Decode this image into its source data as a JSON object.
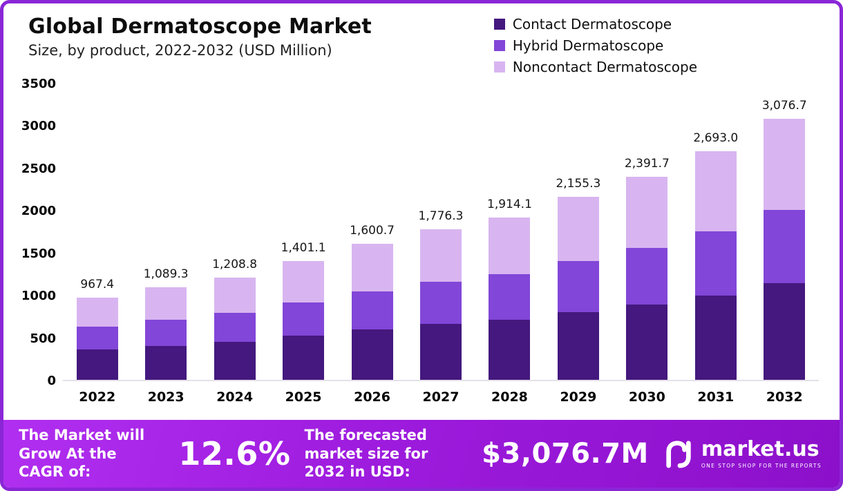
{
  "header": {
    "title": "Global Dermatoscope Market",
    "subtitle": "Size, by product, 2022-2032 (USD Million)"
  },
  "legend": {
    "items": [
      {
        "label": "Contact Dermatoscope",
        "color": "#44187e"
      },
      {
        "label": "Hybrid Dermatoscope",
        "color": "#8246d8"
      },
      {
        "label": "Noncontact Dermatoscope",
        "color": "#d8b5f0"
      }
    ]
  },
  "chart_data": {
    "type": "bar",
    "stacked": true,
    "title": "Global Dermatoscope Market",
    "subtitle": "Size, by product, 2022-2032 (USD Million)",
    "units": "USD Million",
    "categories": [
      "2022",
      "2023",
      "2024",
      "2025",
      "2026",
      "2027",
      "2028",
      "2029",
      "2030",
      "2031",
      "2032"
    ],
    "series": [
      {
        "key": "contact",
        "name": "Contact Dermatoscope",
        "color": "#44187e",
        "values": [
          357.9,
          403.0,
          447.3,
          518.4,
          592.3,
          657.2,
          708.2,
          797.5,
          884.9,
          996.4,
          1138.4
        ]
      },
      {
        "key": "hybrid",
        "name": "Hybrid Dermatoscope",
        "color": "#8246d8",
        "values": [
          270.9,
          305.0,
          338.5,
          392.3,
          448.2,
          497.4,
          535.9,
          603.5,
          669.7,
          754.0,
          861.5
        ]
      },
      {
        "key": "noncontact",
        "name": "Noncontact Dermatoscope",
        "color": "#d8b5f0",
        "values": [
          338.6,
          381.3,
          423.0,
          490.4,
          560.2,
          621.7,
          670.0,
          754.3,
          837.1,
          942.6,
          1076.8
        ]
      }
    ],
    "totals": [
      967.4,
      1089.3,
      1208.8,
      1401.1,
      1600.7,
      1776.3,
      1914.1,
      2155.3,
      2391.7,
      2693.0,
      3076.7
    ],
    "total_labels": [
      "967.4",
      "1,089.3",
      "1,208.8",
      "1,401.1",
      "1,600.7",
      "1,776.3",
      "1,914.1",
      "2,155.3",
      "2,391.7",
      "2,693.0",
      "3,076.7"
    ],
    "ylim": [
      0,
      3500
    ],
    "yticks": [
      0,
      500,
      1000,
      1500,
      2000,
      2500,
      3000,
      3500
    ],
    "legend_position": "top-right",
    "grid": false
  },
  "banner": {
    "cagr_label": "The Market will Grow At the CAGR of:",
    "cagr_value": "12.6%",
    "forecast_label": "The forecasted market size for 2032 in USD:",
    "forecast_value": "$3,076.7M",
    "brand": "market.us",
    "tagline": "ONE STOP SHOP FOR THE REPORTS"
  }
}
